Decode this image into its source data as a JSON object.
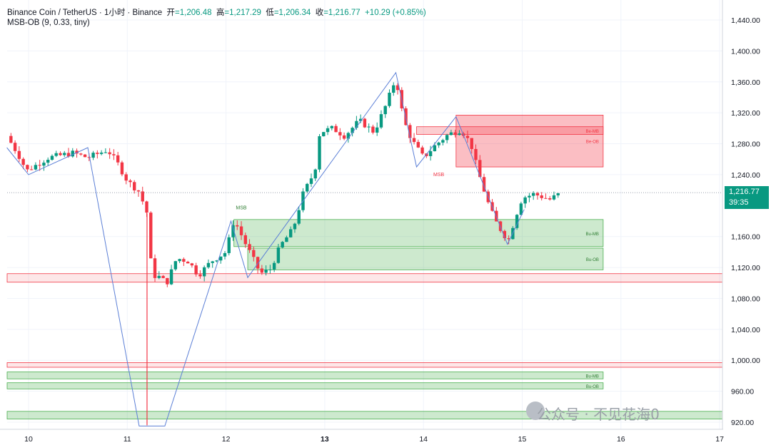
{
  "header": {
    "symbol": "Binance Coin / TetherUS · 1小时 · Binance",
    "open_label": "开",
    "open": "=1,206.48",
    "high_label": "高",
    "high": "=1,217.29",
    "low_label": "低",
    "low": "=1,206.34",
    "close_label": "收",
    "close": "=1,216.77",
    "change": "+10.29 (+0.85%)",
    "indicator": "MSB-OB (9, 0.33, tiny)"
  },
  "price_tag": {
    "price": "1,216.77",
    "countdown": "39:35"
  },
  "watermark": "公众号 · 不见花海0",
  "colors": {
    "up": "#089981",
    "down": "#f23645",
    "bull_zone": "#c8e6c9",
    "bear_zone": "#f7a1a8",
    "zigzag": "#5b7fd6"
  },
  "chart_data": {
    "type": "candlestick",
    "ylim": [
      916,
      1452
    ],
    "xlim": [
      9.78,
      17.1
    ],
    "y_ticks": [
      {
        "value": 1440,
        "label": "1,440.00"
      },
      {
        "value": 1400,
        "label": "1,400.00"
      },
      {
        "value": 1360,
        "label": "1,360.00"
      },
      {
        "value": 1320,
        "label": "1,320.00"
      },
      {
        "value": 1280,
        "label": "1,280.00"
      },
      {
        "value": 1240,
        "label": "1,240.00"
      },
      {
        "value": 1160,
        "label": "1,160.00"
      },
      {
        "value": 1120,
        "label": "1,120.00"
      },
      {
        "value": 1080,
        "label": "1,080.00"
      },
      {
        "value": 1040,
        "label": "1,040.00"
      },
      {
        "value": 1000,
        "label": "1,000.00"
      },
      {
        "value": 960,
        "label": "960.00"
      },
      {
        "value": 920,
        "label": "920.00"
      }
    ],
    "x_ticks": [
      {
        "value": 10,
        "label": "10"
      },
      {
        "value": 11,
        "label": "11"
      },
      {
        "value": 12,
        "label": "12"
      },
      {
        "value": 13,
        "label": "13"
      },
      {
        "value": 14,
        "label": "14"
      },
      {
        "value": 15,
        "label": "15"
      },
      {
        "value": 16,
        "label": "16"
      },
      {
        "value": 17,
        "label": "17"
      }
    ],
    "last_price": 1216.77,
    "price_path": [
      [
        9.78,
        1290
      ],
      [
        9.9,
        1265
      ],
      [
        9.98,
        1245
      ],
      [
        10.2,
        1262
      ],
      [
        10.45,
        1268
      ],
      [
        10.6,
        1262
      ],
      [
        10.8,
        1272
      ],
      [
        10.9,
        1255
      ],
      [
        11.0,
        1232
      ],
      [
        11.12,
        1218
      ],
      [
        11.2,
        1190
      ],
      [
        11.25,
        1110
      ],
      [
        11.32,
        1108
      ],
      [
        11.4,
        1100
      ],
      [
        11.5,
        1132
      ],
      [
        11.62,
        1128
      ],
      [
        11.72,
        1110
      ],
      [
        11.85,
        1128
      ],
      [
        12.0,
        1140
      ],
      [
        12.08,
        1182
      ],
      [
        12.2,
        1150
      ],
      [
        12.35,
        1112
      ],
      [
        12.45,
        1118
      ],
      [
        12.55,
        1148
      ],
      [
        12.68,
        1170
      ],
      [
        12.78,
        1215
      ],
      [
        12.9,
        1245
      ],
      [
        12.95,
        1295
      ],
      [
        13.08,
        1300
      ],
      [
        13.2,
        1290
      ],
      [
        13.35,
        1310
      ],
      [
        13.5,
        1295
      ],
      [
        13.62,
        1330
      ],
      [
        13.72,
        1365
      ],
      [
        13.8,
        1310
      ],
      [
        13.88,
        1285
      ],
      [
        14.0,
        1262
      ],
      [
        14.12,
        1278
      ],
      [
        14.25,
        1292
      ],
      [
        14.38,
        1298
      ],
      [
        14.48,
        1280
      ],
      [
        14.55,
        1245
      ],
      [
        14.65,
        1205
      ],
      [
        14.72,
        1182
      ],
      [
        14.8,
        1165
      ],
      [
        14.86,
        1155
      ],
      [
        14.93,
        1185
      ],
      [
        15.0,
        1210
      ],
      [
        15.12,
        1215
      ],
      [
        15.28,
        1208
      ],
      [
        15.4,
        1216.77
      ]
    ],
    "zigzag": [
      [
        9.78,
        1275
      ],
      [
        10.0,
        1240
      ],
      [
        10.6,
        1275
      ],
      [
        11.12,
        915
      ],
      [
        11.38,
        915
      ],
      [
        12.05,
        1180
      ],
      [
        12.22,
        1107
      ],
      [
        13.72,
        1372
      ],
      [
        13.93,
        1250
      ],
      [
        14.33,
        1315
      ],
      [
        14.85,
        1150
      ],
      [
        15.02,
        1195
      ]
    ],
    "zones": [
      {
        "kind": "bear",
        "x0": 14.33,
        "x1": 15.82,
        "y0": 1317,
        "y1": 1250,
        "label": "Be-OB"
      },
      {
        "kind": "bear_line",
        "x0": 13.93,
        "x1": 15.82,
        "y0": 1302,
        "y1": 1292,
        "label": "Be-MB"
      },
      {
        "kind": "bull",
        "x0": 12.08,
        "x1": 15.82,
        "y0": 1182,
        "y1": 1147,
        "label": "Bu-MB"
      },
      {
        "kind": "bull",
        "x0": 12.22,
        "x1": 15.82,
        "y0": 1145,
        "y1": 1117,
        "label": "Bu-OB"
      },
      {
        "kind": "red_band",
        "x0": 9.78,
        "x1": 17.1,
        "y0": 1112,
        "y1": 1101,
        "label": ""
      },
      {
        "kind": "red_band",
        "x0": 9.78,
        "x1": 17.1,
        "y0": 997,
        "y1": 991,
        "label": ""
      },
      {
        "kind": "bull",
        "x0": 9.78,
        "x1": 15.82,
        "y0": 985,
        "y1": 976,
        "label": "Bu-MB"
      },
      {
        "kind": "bull",
        "x0": 9.78,
        "x1": 15.82,
        "y0": 971,
        "y1": 963,
        "label": "Bu-OB"
      },
      {
        "kind": "bull",
        "x0": 9.78,
        "x1": 17.1,
        "y0": 934,
        "y1": 924,
        "label": ""
      }
    ],
    "msb_labels": [
      {
        "x": 12.1,
        "y": 1195,
        "text": "MSB",
        "kind": "bull"
      },
      {
        "x": 14.1,
        "y": 1238,
        "text": "MSB",
        "kind": "bear"
      }
    ],
    "spike_lines": [
      {
        "x": 11.2,
        "y0": 1190,
        "y1": 916,
        "kind": "bear"
      }
    ]
  }
}
